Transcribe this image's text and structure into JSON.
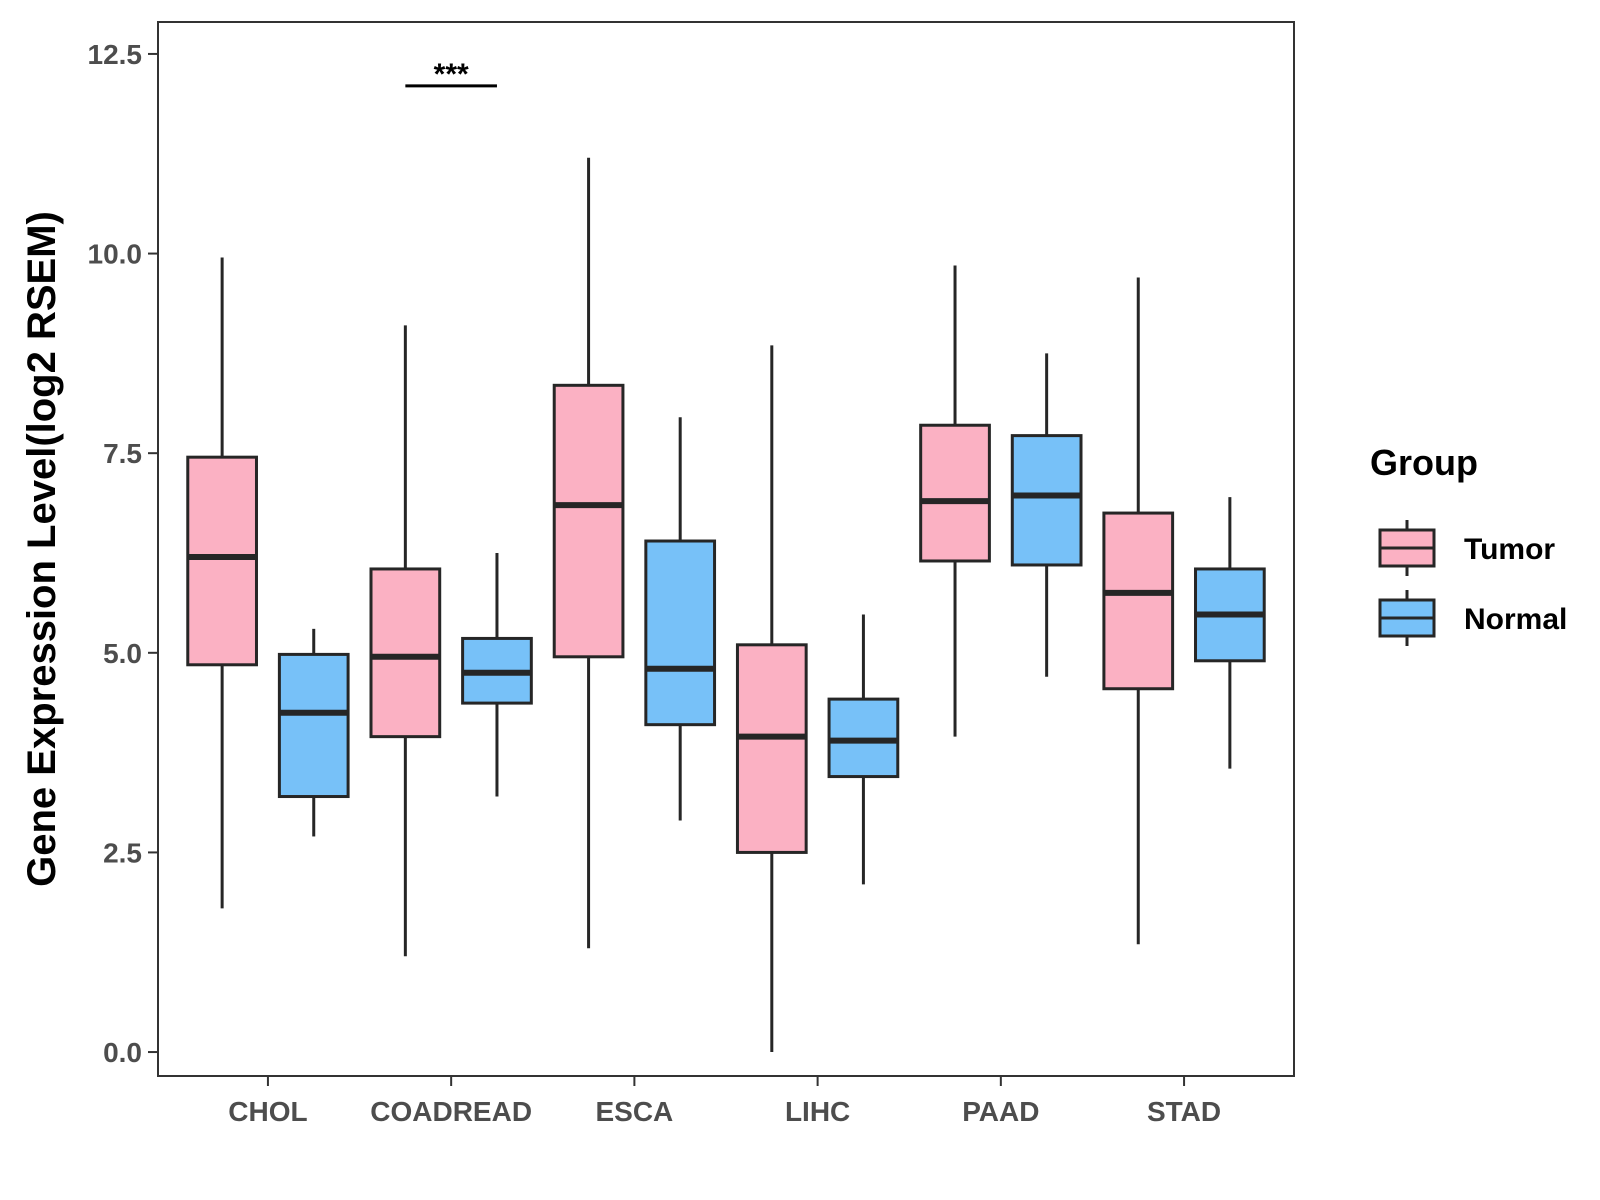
{
  "chart_data": {
    "type": "boxplot",
    "title": "",
    "xlabel": "",
    "ylabel": "Gene Expression Level(log2 RSEM)",
    "ylim": [
      -0.3,
      12.9
    ],
    "yticks": [
      0.0,
      2.5,
      5.0,
      7.5,
      10.0,
      12.5
    ],
    "ytick_labels": [
      "0.0",
      "2.5",
      "5.0",
      "7.5",
      "10.0",
      "12.5"
    ],
    "categories": [
      "CHOL",
      "COADREAD",
      "ESCA",
      "LIHC",
      "PAAD",
      "STAD"
    ],
    "legend": {
      "title": "Group",
      "position": "right",
      "entries": [
        {
          "name": "Tumor",
          "color": "#FBB1C3"
        },
        {
          "name": "Normal",
          "color": "#77C1F8"
        }
      ]
    },
    "series": [
      {
        "name": "Tumor",
        "color": "#FBB1C3",
        "boxes": [
          {
            "min": 1.8,
            "q1": 4.85,
            "median": 6.2,
            "q3": 7.45,
            "max": 9.95
          },
          {
            "min": 1.2,
            "q1": 3.95,
            "median": 4.95,
            "q3": 6.05,
            "max": 9.1
          },
          {
            "min": 1.3,
            "q1": 4.95,
            "median": 6.85,
            "q3": 8.35,
            "max": 11.2
          },
          {
            "min": 0.0,
            "q1": 2.5,
            "median": 3.95,
            "q3": 5.1,
            "max": 8.85
          },
          {
            "min": 3.95,
            "q1": 6.15,
            "median": 6.9,
            "q3": 7.85,
            "max": 9.85
          },
          {
            "min": 1.35,
            "q1": 4.55,
            "median": 5.75,
            "q3": 6.75,
            "max": 9.7
          }
        ]
      },
      {
        "name": "Normal",
        "color": "#77C1F8",
        "boxes": [
          {
            "min": 2.7,
            "q1": 3.2,
            "median": 4.25,
            "q3": 4.98,
            "max": 5.3
          },
          {
            "min": 3.2,
            "q1": 4.37,
            "median": 4.75,
            "q3": 5.18,
            "max": 6.25
          },
          {
            "min": 2.9,
            "q1": 4.1,
            "median": 4.8,
            "q3": 6.4,
            "max": 7.95
          },
          {
            "min": 2.1,
            "q1": 3.45,
            "median": 3.9,
            "q3": 4.42,
            "max": 5.48
          },
          {
            "min": 4.7,
            "q1": 6.1,
            "median": 6.97,
            "q3": 7.72,
            "max": 8.75
          },
          {
            "min": 3.55,
            "q1": 4.9,
            "median": 5.48,
            "q3": 6.05,
            "max": 6.95
          }
        ]
      }
    ],
    "annotations": [
      {
        "category": "COADREAD",
        "text": "***",
        "y": 12.1
      }
    ]
  }
}
